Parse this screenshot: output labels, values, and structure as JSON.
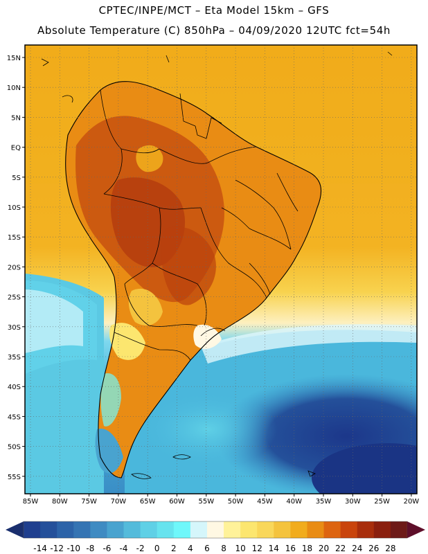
{
  "title": {
    "line1": "CPTEC/INPE/MCT –  Eta Model 15km – GFS",
    "line2": "Absolute Temperature (C) 850hPa – 04/09/2020 12UTC fct=54h"
  },
  "lat_labels": [
    "15N",
    "10N",
    "5N",
    "EQ",
    "5S",
    "10S",
    "15S",
    "20S",
    "25S",
    "30S",
    "35S",
    "40S",
    "45S",
    "50S",
    "55S"
  ],
  "lon_labels": [
    "85W",
    "80W",
    "75W",
    "70W",
    "65W",
    "60W",
    "55W",
    "50W",
    "45W",
    "40W",
    "35W",
    "30W",
    "25W",
    "20W"
  ],
  "colorbar": {
    "labels": [
      "-14",
      "-12",
      "-10",
      "-8",
      "-6",
      "-4",
      "-2",
      "0",
      "2",
      "4",
      "6",
      "8",
      "10",
      "12",
      "14",
      "16",
      "18",
      "20",
      "22",
      "24",
      "26",
      "28"
    ],
    "colors": [
      "#1f3f8f",
      "#24509a",
      "#2c63a8",
      "#3574b3",
      "#3f8bc2",
      "#49a3cf",
      "#54bbdb",
      "#5fd0e6",
      "#67e3ee",
      "#6ff7fa",
      "#d5f6fb",
      "#fff8e3",
      "#fff29a",
      "#fce66f",
      "#f9d75a",
      "#f4c33e",
      "#f1ac1d",
      "#e98c14",
      "#dd6410",
      "#c9440c",
      "#a82e0c",
      "#8a1f0e",
      "#6d1a18"
    ],
    "left_arrow_color": "#1a2f6e",
    "right_arrow_color": "#5e0f2a"
  },
  "map_colors": {
    "ocean_warm": "#f2b21c",
    "ocean_mid": "#f8d24e",
    "cool_cyan": "#56c6e2",
    "cool_blue": "#3a8ec6",
    "deep_blue": "#1f3f8f",
    "land_hot": "#c9540f",
    "land_warm": "#e98c14"
  }
}
